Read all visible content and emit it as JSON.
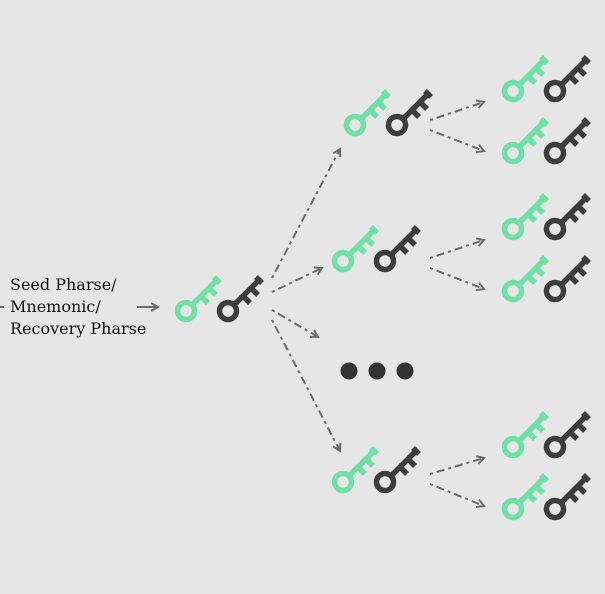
{
  "seed": {
    "lines": [
      "Seed Pharse/",
      "Mnemonic/",
      "Recovery Pharse"
    ]
  },
  "colors": {
    "background": "#e6e6e6",
    "public_key": "#6fe0a6",
    "private_key": "#3d3d3d",
    "arrow": "#6b6b6b",
    "ellipsis": "#333333"
  },
  "icons": {
    "key_pair": [
      "public-key-icon",
      "private-key-icon"
    ],
    "ellipsis": "ellipsis-icon"
  },
  "tree": {
    "root": "master-key-pair",
    "children": [
      {
        "id": "child-1",
        "grandchildren": 2
      },
      {
        "id": "child-2",
        "grandchildren": 2
      },
      {
        "id": "child-more",
        "ellipsis": true
      },
      {
        "id": "child-3",
        "grandchildren": 2
      }
    ]
  }
}
